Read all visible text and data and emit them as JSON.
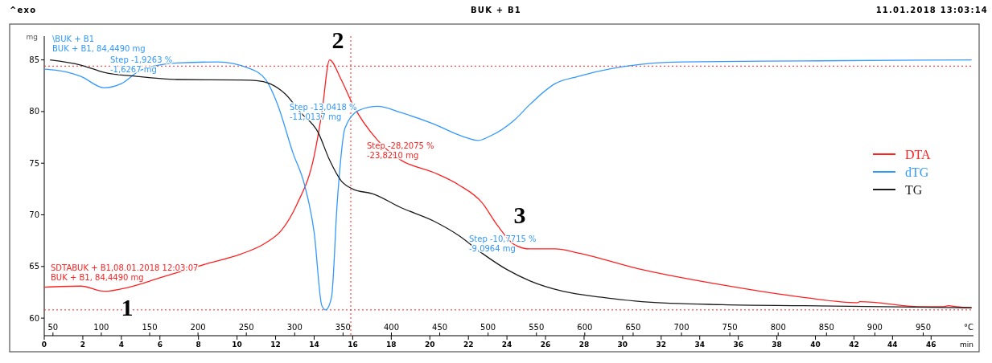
{
  "chart_data": {
    "type": "line",
    "title": "BUK + B1",
    "xlabel": "min",
    "x2label": "°C",
    "ylabel": "mg",
    "xlim": [
      0,
      48.2
    ],
    "xticks": [
      0,
      2,
      4,
      6,
      8,
      10,
      12,
      14,
      16,
      18,
      20,
      22,
      24,
      26,
      28,
      30,
      32,
      34,
      36,
      38,
      40,
      42,
      44,
      46
    ],
    "x2lim": [
      41,
      1002
    ],
    "x2ticks": [
      50,
      100,
      150,
      200,
      250,
      300,
      350,
      400,
      450,
      500,
      550,
      600,
      650,
      700,
      750,
      800,
      850,
      900,
      950
    ],
    "ylim": [
      58.3,
      87.3
    ],
    "yticks": [
      60,
      65,
      70,
      75,
      80,
      85
    ],
    "grid": false,
    "legend": "right",
    "line_style": "solid",
    "marker": "none",
    "series": [
      {
        "name": "DTA",
        "color": "#ff2020",
        "x": [
          0,
          1.9,
          3.1,
          4.4,
          6.0,
          8.5,
          10.2,
          11.5,
          12.3,
          13.1,
          14.0,
          14.4,
          14.8,
          15.4,
          16.0,
          17.3,
          18.5,
          20.2,
          21.5,
          22.7,
          23.5,
          24.4,
          25.2,
          26.5,
          27.7,
          31.0,
          35.2,
          39.4,
          42.2,
          42.3,
          45.6,
          46.6,
          46.9,
          47.3,
          48.1
        ],
        "values": [
          63.0,
          63.1,
          62.6,
          63.0,
          63.9,
          65.3,
          66.2,
          67.3,
          68.5,
          71.0,
          75.7,
          79.9,
          85.0,
          83.1,
          80.7,
          77.2,
          75.3,
          74.1,
          72.9,
          71.2,
          69.0,
          67.1,
          66.7,
          66.7,
          66.3,
          64.7,
          63.2,
          62.0,
          61.5,
          61.6,
          61.1,
          61.1,
          61.2,
          61.1,
          61.0
        ]
      },
      {
        "name": "dTG",
        "color": "#3399ff",
        "x": [
          0,
          0.6,
          1.9,
          3.1,
          4.0,
          5.0,
          6.9,
          9.0,
          10.6,
          11.5,
          12.1,
          12.9,
          13.5,
          14.0,
          14.4,
          14.6,
          14.9,
          15.2,
          15.6,
          16.3,
          17.3,
          18.5,
          20.2,
          21.7,
          22.5,
          23.1,
          24.4,
          25.2,
          26.5,
          27.7,
          30.2,
          33.1,
          39.4,
          48.1
        ],
        "values": [
          84.1,
          84.0,
          83.4,
          82.3,
          82.7,
          84.0,
          84.7,
          84.8,
          84.2,
          83.05,
          80.7,
          76.0,
          72.9,
          68.3,
          61.2,
          60.8,
          62.0,
          71.3,
          78.4,
          80.1,
          80.5,
          79.9,
          78.8,
          77.6,
          77.2,
          77.6,
          79.2,
          80.7,
          82.7,
          83.4,
          84.4,
          84.8,
          84.9,
          85.0
        ]
      },
      {
        "name": "TG",
        "color": "#1a1a1a",
        "x": [
          0.3,
          1.9,
          3.1,
          4.8,
          6.9,
          10.2,
          11.0,
          11.7,
          12.5,
          13.3,
          14.2,
          14.8,
          15.4,
          16.0,
          17.1,
          18.5,
          20.2,
          21.5,
          22.7,
          24.0,
          25.2,
          26.9,
          29.0,
          31.0,
          35.2,
          39.4,
          48.1
        ],
        "values": [
          85.0,
          84.5,
          83.8,
          83.4,
          83.1,
          83.05,
          83.0,
          82.7,
          81.7,
          79.9,
          78.0,
          75.3,
          73.3,
          72.5,
          72.0,
          70.7,
          69.4,
          68.0,
          66.3,
          64.7,
          63.6,
          62.6,
          62.0,
          61.6,
          61.3,
          61.2,
          61.0
        ]
      }
    ],
    "ref_lines": [
      {
        "axis": "y",
        "value": 84.4,
        "color": "#ff2020",
        "line_style": "dotted"
      },
      {
        "axis": "x",
        "value": 15.9,
        "color": "#ff2020",
        "line_style": "dotted"
      },
      {
        "axis": "y",
        "value": 60.8,
        "color": "#ff2020",
        "line_style": "dotted"
      }
    ],
    "annotations": [
      "^exo",
      "11.01.2018 13:03:14",
      "\\BUK + B1\nBUK + B1, 84,4490 mg",
      "Step  -1,9263 %\n-1,6267 mg",
      "Step  -13,0418 %\n-11,0137 mg",
      "Step  -28,2075 %\n-23,8210 mg",
      "Step  -10,7715 %\n-9,0964 mg",
      "SDTABUK + B1,08.01.2018 12:03:07\nBUK + B1, 84,4490 mg",
      "1",
      "2",
      "3"
    ]
  }
}
